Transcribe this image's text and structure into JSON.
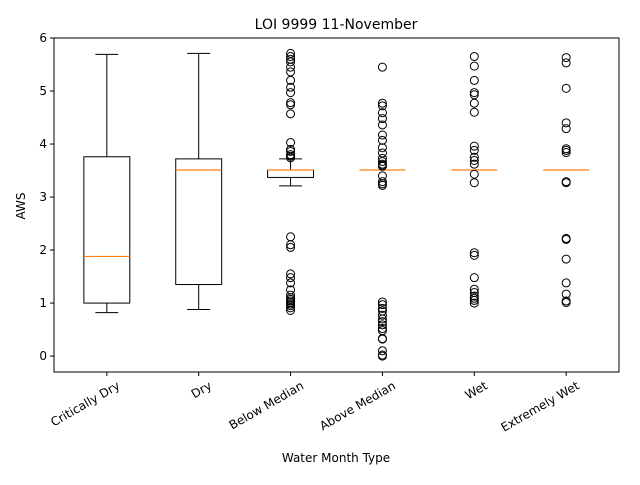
{
  "chart_data": {
    "type": "box",
    "title": "LOI 9999 11-November",
    "xlabel": "Water Month Type",
    "ylabel": "AWS",
    "ylim": [
      -0.3,
      6.0
    ],
    "yticks": [
      0,
      1,
      2,
      3,
      4,
      5,
      6
    ],
    "categories": [
      "Critically Dry",
      "Dry",
      "Below Median",
      "Above Median",
      "Wet",
      "Extremely Wet"
    ],
    "boxes": [
      {
        "whisker_low": 0.82,
        "q1": 1.0,
        "median": 1.88,
        "q3": 3.76,
        "whisker_high": 5.69,
        "outliers": []
      },
      {
        "whisker_low": 0.88,
        "q1": 1.35,
        "median": 3.51,
        "q3": 3.72,
        "whisker_high": 5.71,
        "outliers": []
      },
      {
        "whisker_low": 3.21,
        "q1": 3.37,
        "median": 3.51,
        "q3": 3.51,
        "whisker_high": 3.72,
        "outliers": [
          5.71,
          5.65,
          5.6,
          5.55,
          5.45,
          5.36,
          5.2,
          5.07,
          4.97,
          4.78,
          4.74,
          4.57,
          4.03,
          3.9,
          3.86,
          3.8,
          3.77,
          3.74,
          2.25,
          2.1,
          2.05,
          1.55,
          1.48,
          1.38,
          1.25,
          1.15,
          1.1,
          1.07,
          1.04,
          1.01,
          0.98,
          0.95,
          0.91,
          0.86
        ]
      },
      {
        "whisker_low": 3.51,
        "q1": 3.51,
        "median": 3.51,
        "q3": 3.51,
        "whisker_high": 3.51,
        "outliers": [
          5.45,
          4.77,
          4.72,
          4.59,
          4.48,
          4.36,
          4.17,
          4.07,
          3.93,
          3.83,
          3.73,
          3.67,
          3.62,
          3.6,
          3.58,
          3.4,
          3.29,
          3.25,
          3.22,
          1.02,
          0.97,
          0.9,
          0.85,
          0.77,
          0.7,
          0.65,
          0.59,
          0.52,
          0.48,
          0.33,
          0.32,
          0.1,
          0.02,
          0.0
        ]
      },
      {
        "whisker_low": 3.51,
        "q1": 3.51,
        "median": 3.51,
        "q3": 3.51,
        "whisker_high": 3.51,
        "outliers": [
          5.65,
          5.47,
          5.2,
          4.97,
          4.93,
          4.77,
          4.6,
          3.96,
          3.88,
          3.75,
          3.69,
          3.62,
          3.43,
          3.27,
          1.95,
          1.9,
          1.48,
          1.26,
          1.2,
          1.13,
          1.09,
          1.05,
          1.0
        ]
      },
      {
        "whisker_low": 3.51,
        "q1": 3.51,
        "median": 3.51,
        "q3": 3.51,
        "whisker_high": 3.51,
        "outliers": [
          5.63,
          5.53,
          5.05,
          4.4,
          4.29,
          3.91,
          3.88,
          3.84,
          3.29,
          3.27,
          2.22,
          2.2,
          1.83,
          1.38,
          1.17,
          1.04,
          1.01
        ]
      }
    ],
    "colors": {
      "box": "#000000",
      "median": "#ff7f0e",
      "outlier_edge": "#000000"
    },
    "grid": false,
    "legend": "none"
  }
}
